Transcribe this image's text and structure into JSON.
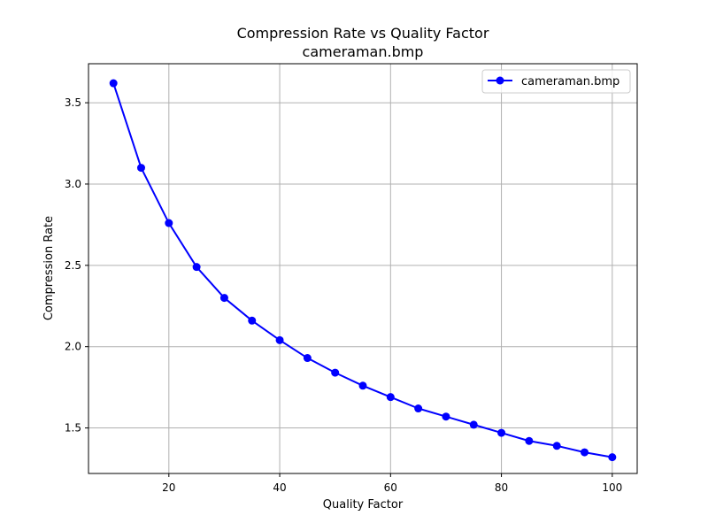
{
  "chart_data": {
    "type": "line",
    "title": "Compression Rate vs Quality Factor",
    "subtitle": "cameraman.bmp",
    "xlabel": "Quality Factor",
    "ylabel": "Compression Rate",
    "xlim": [
      5.5,
      104.5
    ],
    "ylim": [
      1.22,
      3.74
    ],
    "xticks": [
      20,
      40,
      60,
      80,
      100
    ],
    "xtick_labels": [
      "20",
      "40",
      "60",
      "80",
      "100"
    ],
    "yticks": [
      1.5,
      2.0,
      2.5,
      3.0,
      3.5
    ],
    "ytick_labels": [
      "1.5",
      "2.0",
      "2.5",
      "3.0",
      "3.5"
    ],
    "grid": true,
    "legend_position": "top-right",
    "series": [
      {
        "name": "cameraman.bmp",
        "color": "#0000ff",
        "marker": "circle",
        "x": [
          10,
          15,
          20,
          25,
          30,
          35,
          40,
          45,
          50,
          55,
          60,
          65,
          70,
          75,
          80,
          85,
          90,
          95,
          100
        ],
        "y": [
          3.62,
          3.1,
          2.76,
          2.49,
          2.3,
          2.16,
          2.04,
          1.93,
          1.84,
          1.76,
          1.69,
          1.62,
          1.57,
          1.52,
          1.47,
          1.42,
          1.39,
          1.35,
          1.32
        ]
      }
    ]
  }
}
